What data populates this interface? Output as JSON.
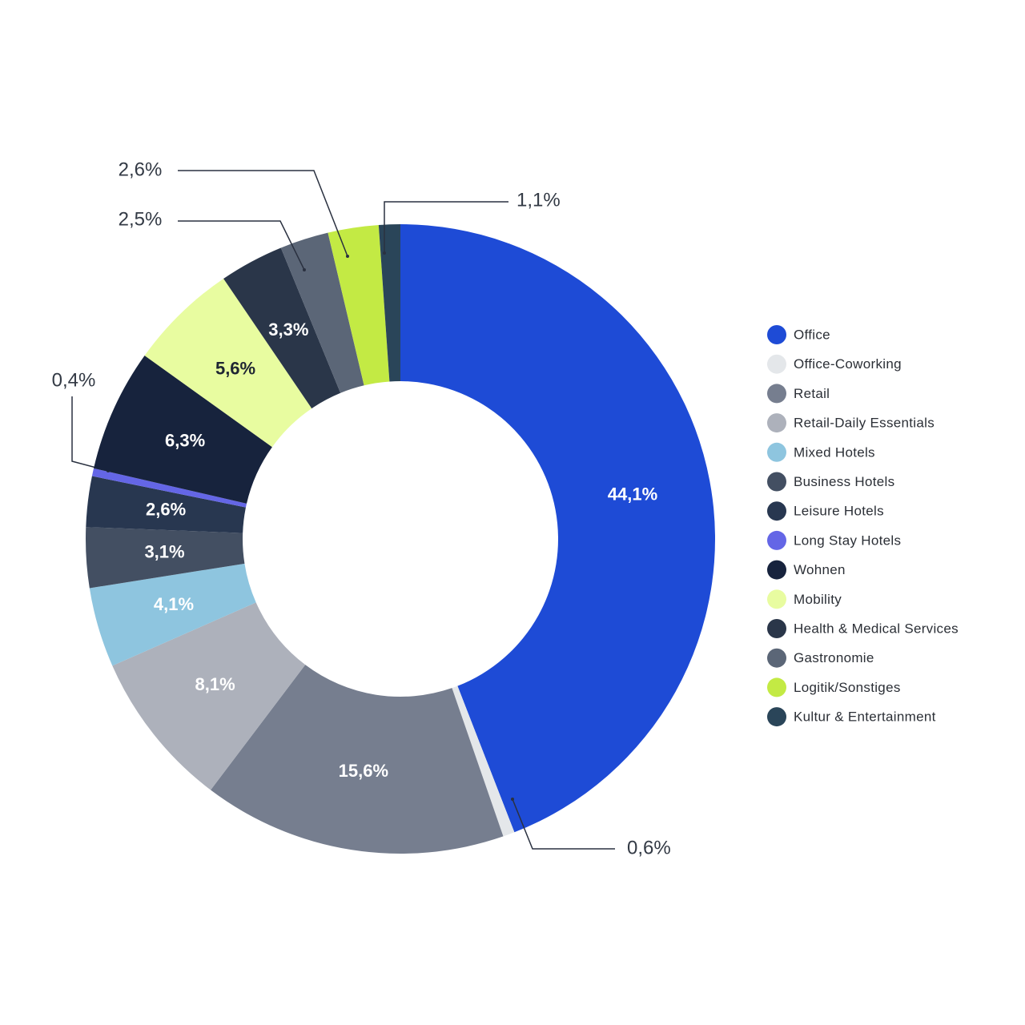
{
  "chart_data": {
    "type": "donut",
    "series": [
      {
        "name": "Office",
        "color": "#1e4bd6",
        "values": [
          44.1
        ],
        "value_labels": [
          "44,1%"
        ]
      },
      {
        "name": "Office-Coworking",
        "color": "#e4e7ea",
        "values": [
          0.6
        ],
        "value_labels": [
          "0,6%"
        ]
      },
      {
        "name": "Retail",
        "color": "#767e8f",
        "values": [
          15.6
        ],
        "value_labels": [
          "15,6%"
        ]
      },
      {
        "name": "Retail-Daily Essentials",
        "color": "#adb1bb",
        "values": [
          8.1
        ],
        "value_labels": [
          "8,1%"
        ]
      },
      {
        "name": "Mixed Hotels",
        "color": "#8ec5df",
        "values": [
          4.1
        ],
        "value_labels": [
          "4,1%"
        ]
      },
      {
        "name": "Business Hotels",
        "color": "#434f62",
        "values": [
          3.1
        ],
        "value_labels": [
          "3,1%"
        ]
      },
      {
        "name": "Leisure Hotels",
        "color": "#283750",
        "values": [
          2.6
        ],
        "value_labels": [
          "2,6%"
        ]
      },
      {
        "name": "Long Stay Hotels",
        "color": "#6466e6",
        "values": [
          0.4
        ],
        "value_labels": [
          "0,4%"
        ]
      },
      {
        "name": "Wohnen",
        "color": "#17233d",
        "values": [
          6.3
        ],
        "value_labels": [
          "6,3%"
        ]
      },
      {
        "name": "Mobility",
        "color": "#e8fca0",
        "values": [
          5.6
        ],
        "value_labels": [
          "5,6%"
        ]
      },
      {
        "name": "Health & Medical Services",
        "color": "#2a3649",
        "values": [
          3.3
        ],
        "value_labels": [
          "3,3%"
        ]
      },
      {
        "name": "Gastronomie",
        "color": "#5b6677",
        "values": [
          2.5
        ],
        "value_labels": [
          "2,5%"
        ]
      },
      {
        "name": "Logitik/Sonstiges",
        "color": "#c3ea44",
        "values": [
          2.6
        ],
        "value_labels": [
          "2,6%"
        ]
      },
      {
        "name": "Kultur & Entertainment",
        "color": "#2a4559",
        "values": [
          1.1
        ],
        "value_labels": [
          "1,1%"
        ]
      }
    ]
  }
}
